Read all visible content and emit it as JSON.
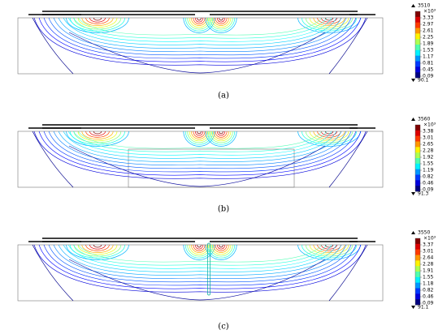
{
  "panels": [
    {
      "max": "3510",
      "unit": "×10³",
      "ticks": [
        "3.33",
        "2.97",
        "2.61",
        "2.25",
        "1.89",
        "1.53",
        "1.17",
        "0.81",
        "0.45",
        "0.09"
      ],
      "min": "90.1",
      "caption": "(a)"
    },
    {
      "max": "3560",
      "unit": "×10³",
      "ticks": [
        "3.38",
        "3.01",
        "2.65",
        "2.28",
        "1.92",
        "1.55",
        "1.19",
        "0.82",
        "0.46",
        "0.09"
      ],
      "min": "91.3",
      "caption": "(b)"
    },
    {
      "max": "3550",
      "unit": "×10³",
      "ticks": [
        "3.37",
        "3.01",
        "2.64",
        "2.28",
        "1.91",
        "1.55",
        "1.18",
        "0.82",
        "0.46",
        "0.09"
      ],
      "min": "91.1",
      "caption": "(c)"
    }
  ]
}
